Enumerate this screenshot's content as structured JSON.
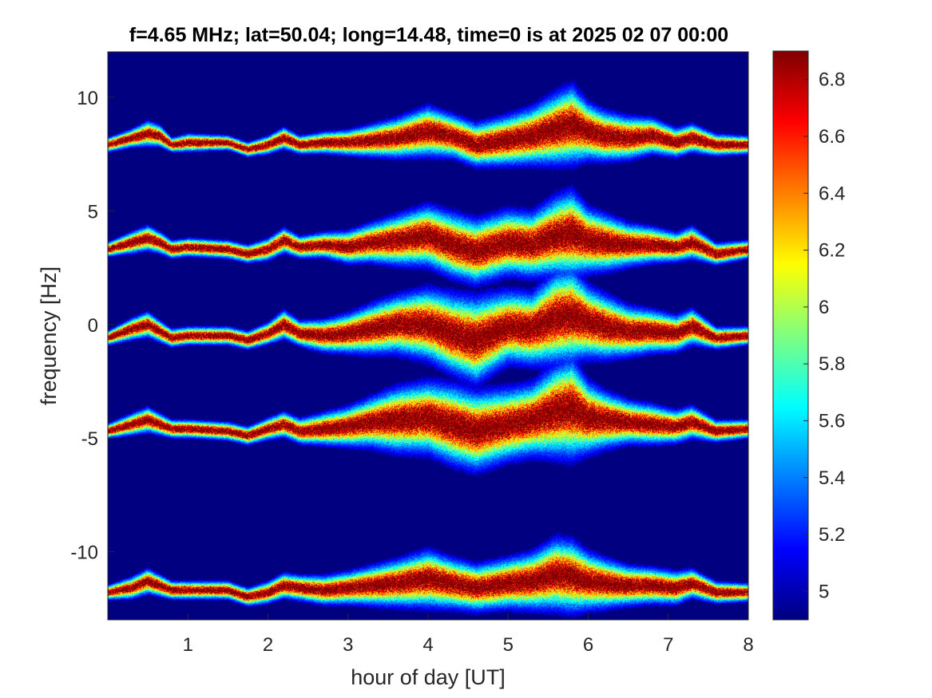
{
  "chart_data": {
    "type": "heatmap",
    "title": "f=4.65 MHz;  lat=50.04; long=14.48, time=0 is at 2025 02 07 00:00",
    "xlabel": "hour of day [UT]",
    "ylabel": "frequency [Hz]",
    "xlim": [
      0,
      8
    ],
    "ylim": [
      -13,
      12
    ],
    "x_ticks": [
      1,
      2,
      3,
      4,
      5,
      6,
      7,
      8
    ],
    "y_ticks": [
      -10,
      -5,
      0,
      5,
      10
    ],
    "colormap": "jet",
    "color_range": [
      4.9,
      6.9
    ],
    "colorbar_ticks": [
      5,
      5.2,
      5.4,
      5.6,
      5.8,
      6,
      6.2,
      6.4,
      6.6,
      6.8
    ],
    "background_value": 4.9,
    "series": [
      {
        "x": [
          0,
          0.3,
          0.5,
          0.65,
          0.8,
          1.0,
          1.5,
          1.75,
          2.0,
          2.2,
          2.4,
          2.7,
          3.0,
          3.3,
          3.6,
          4.0,
          4.3,
          4.6,
          5.0,
          5.3,
          5.6,
          5.8,
          6.0,
          6.2,
          6.5,
          6.8,
          7.1,
          7.3,
          7.6,
          8.0
        ],
        "center": [
          7.9,
          8.2,
          8.4,
          8.3,
          7.9,
          8.0,
          8.0,
          7.7,
          7.9,
          8.2,
          7.9,
          8.0,
          8.0,
          8.1,
          8.2,
          8.5,
          8.3,
          7.9,
          8.1,
          8.3,
          8.6,
          8.8,
          8.5,
          8.3,
          8.2,
          8.3,
          8.0,
          8.2,
          7.9,
          7.9
        ],
        "spread": [
          0.2,
          0.25,
          0.35,
          0.3,
          0.2,
          0.25,
          0.2,
          0.2,
          0.25,
          0.3,
          0.25,
          0.3,
          0.35,
          0.45,
          0.55,
          0.7,
          0.6,
          0.6,
          0.7,
          0.8,
          1.0,
          1.1,
          0.8,
          0.7,
          0.6,
          0.5,
          0.4,
          0.4,
          0.3,
          0.25
        ]
      },
      {
        "x": [
          0,
          0.3,
          0.5,
          0.65,
          0.8,
          1.0,
          1.5,
          1.75,
          2.0,
          2.2,
          2.4,
          2.7,
          3.0,
          3.3,
          3.6,
          4.0,
          4.3,
          4.6,
          5.0,
          5.3,
          5.6,
          5.8,
          6.0,
          6.2,
          6.5,
          6.8,
          7.1,
          7.3,
          7.6,
          8.0
        ],
        "center": [
          3.3,
          3.6,
          3.8,
          3.6,
          3.3,
          3.4,
          3.3,
          3.1,
          3.3,
          3.7,
          3.4,
          3.5,
          3.4,
          3.6,
          3.7,
          3.9,
          3.5,
          3.2,
          3.6,
          3.5,
          3.9,
          4.0,
          3.7,
          3.6,
          3.5,
          3.5,
          3.4,
          3.6,
          3.1,
          3.3
        ],
        "spread": [
          0.2,
          0.3,
          0.35,
          0.3,
          0.25,
          0.25,
          0.25,
          0.25,
          0.3,
          0.35,
          0.3,
          0.35,
          0.45,
          0.55,
          0.7,
          0.85,
          0.9,
          0.9,
          0.9,
          0.9,
          1.1,
          1.2,
          0.9,
          0.8,
          0.6,
          0.5,
          0.4,
          0.45,
          0.3,
          0.25
        ]
      },
      {
        "x": [
          0,
          0.3,
          0.5,
          0.65,
          0.8,
          1.0,
          1.5,
          1.75,
          2.0,
          2.2,
          2.4,
          2.7,
          3.0,
          3.3,
          3.6,
          4.0,
          4.3,
          4.6,
          5.0,
          5.3,
          5.6,
          5.8,
          6.0,
          6.2,
          6.5,
          6.8,
          7.1,
          7.3,
          7.6,
          8.0
        ],
        "center": [
          -0.6,
          -0.2,
          0.0,
          -0.3,
          -0.6,
          -0.5,
          -0.5,
          -0.7,
          -0.4,
          0.0,
          -0.4,
          -0.5,
          -0.4,
          -0.2,
          0.0,
          0.0,
          -0.4,
          -0.7,
          -0.1,
          -0.2,
          0.3,
          0.4,
          0.1,
          -0.1,
          -0.3,
          -0.3,
          -0.4,
          -0.1,
          -0.6,
          -0.5
        ],
        "spread": [
          0.2,
          0.3,
          0.35,
          0.3,
          0.25,
          0.25,
          0.25,
          0.25,
          0.3,
          0.4,
          0.35,
          0.45,
          0.55,
          0.7,
          0.8,
          1.0,
          1.1,
          1.2,
          1.0,
          1.0,
          1.3,
          1.3,
          1.0,
          0.9,
          0.7,
          0.6,
          0.5,
          0.5,
          0.3,
          0.25
        ]
      },
      {
        "x": [
          0,
          0.3,
          0.5,
          0.65,
          0.8,
          1.0,
          1.5,
          1.75,
          2.0,
          2.2,
          2.4,
          2.7,
          3.0,
          3.3,
          3.6,
          4.0,
          4.3,
          4.6,
          5.0,
          5.3,
          5.6,
          5.8,
          6.0,
          6.2,
          6.5,
          6.8,
          7.1,
          7.3,
          7.6,
          8.0
        ],
        "center": [
          -4.7,
          -4.4,
          -4.2,
          -4.4,
          -4.6,
          -4.6,
          -4.7,
          -4.9,
          -4.6,
          -4.4,
          -4.7,
          -4.6,
          -4.5,
          -4.3,
          -4.2,
          -4.1,
          -4.4,
          -4.7,
          -4.4,
          -4.2,
          -3.8,
          -3.7,
          -4.1,
          -4.2,
          -4.3,
          -4.4,
          -4.5,
          -4.3,
          -4.7,
          -4.6
        ],
        "spread": [
          0.2,
          0.3,
          0.35,
          0.3,
          0.25,
          0.25,
          0.25,
          0.25,
          0.3,
          0.35,
          0.35,
          0.45,
          0.55,
          0.7,
          0.9,
          1.0,
          1.1,
          1.1,
          1.0,
          1.0,
          1.3,
          1.4,
          1.0,
          0.8,
          0.6,
          0.55,
          0.45,
          0.45,
          0.3,
          0.25
        ]
      },
      {
        "x": [
          0,
          0.3,
          0.5,
          0.65,
          0.8,
          1.0,
          1.5,
          1.75,
          2.0,
          2.2,
          2.4,
          2.7,
          3.0,
          3.3,
          3.6,
          4.0,
          4.3,
          4.6,
          5.0,
          5.3,
          5.6,
          5.8,
          6.0,
          6.2,
          6.5,
          6.8,
          7.1,
          7.3,
          7.6,
          8.0
        ],
        "center": [
          -11.8,
          -11.6,
          -11.3,
          -11.5,
          -11.7,
          -11.7,
          -11.7,
          -12.0,
          -11.8,
          -11.5,
          -11.6,
          -11.7,
          -11.6,
          -11.5,
          -11.4,
          -11.2,
          -11.4,
          -11.6,
          -11.4,
          -11.3,
          -11.0,
          -11.1,
          -11.3,
          -11.4,
          -11.5,
          -11.5,
          -11.6,
          -11.4,
          -11.8,
          -11.8
        ],
        "spread": [
          0.2,
          0.3,
          0.35,
          0.3,
          0.25,
          0.25,
          0.25,
          0.25,
          0.3,
          0.35,
          0.35,
          0.4,
          0.45,
          0.55,
          0.65,
          0.8,
          0.7,
          0.65,
          0.7,
          0.8,
          1.0,
          1.0,
          0.8,
          0.7,
          0.55,
          0.5,
          0.45,
          0.4,
          0.3,
          0.25
        ]
      }
    ]
  }
}
